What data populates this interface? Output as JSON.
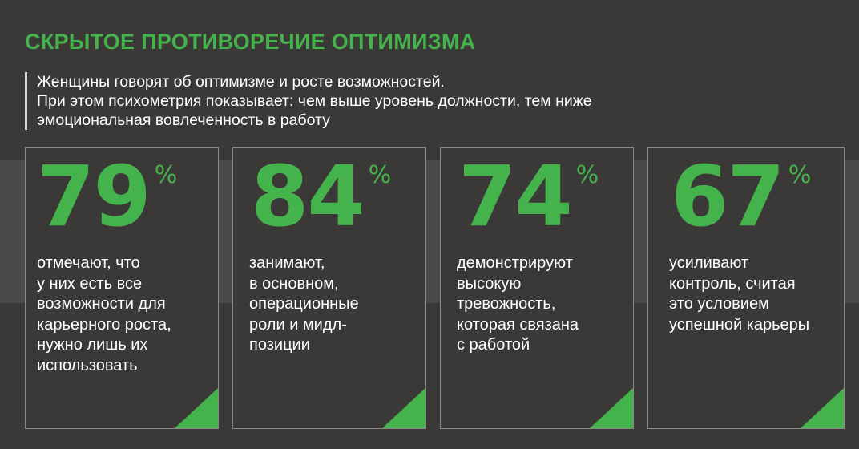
{
  "title": "СКРЫТОЕ ПРОТИВОРЕЧИЕ ОПТИМИЗМА",
  "subtitle": {
    "lines": [
      "Женщины говорят об оптимизме и росте возможностей.",
      "При этом психометрия показывает: чем выше уровень должности, тем ниже",
      "эмоциональная вовлеченность в работу"
    ]
  },
  "colors": {
    "accent": "#45b34c",
    "background": "#3b3838",
    "band": "#4c4a49",
    "card_border": "#8a8888",
    "text": "#ffffff"
  },
  "stats": [
    {
      "value": "79",
      "unit": "%",
      "lines": [
        "отмечают, что",
        "у них есть все",
        "возможности для",
        "карьерного роста,",
        "нужно лишь их",
        "использовать"
      ]
    },
    {
      "value": "84",
      "unit": "%",
      "lines": [
        "занимают,",
        "в основном,",
        "операционные",
        "роли и мидл-",
        "позиции"
      ]
    },
    {
      "value": "74",
      "unit": "%",
      "lines": [
        "демонстрируют",
        "высокую",
        "тревожность,",
        "которая связана",
        "с работой"
      ]
    },
    {
      "value": "67",
      "unit": "%",
      "lines": [
        "усиливают",
        "контроль, считая",
        "это условием",
        "успешной карьеры"
      ]
    }
  ]
}
